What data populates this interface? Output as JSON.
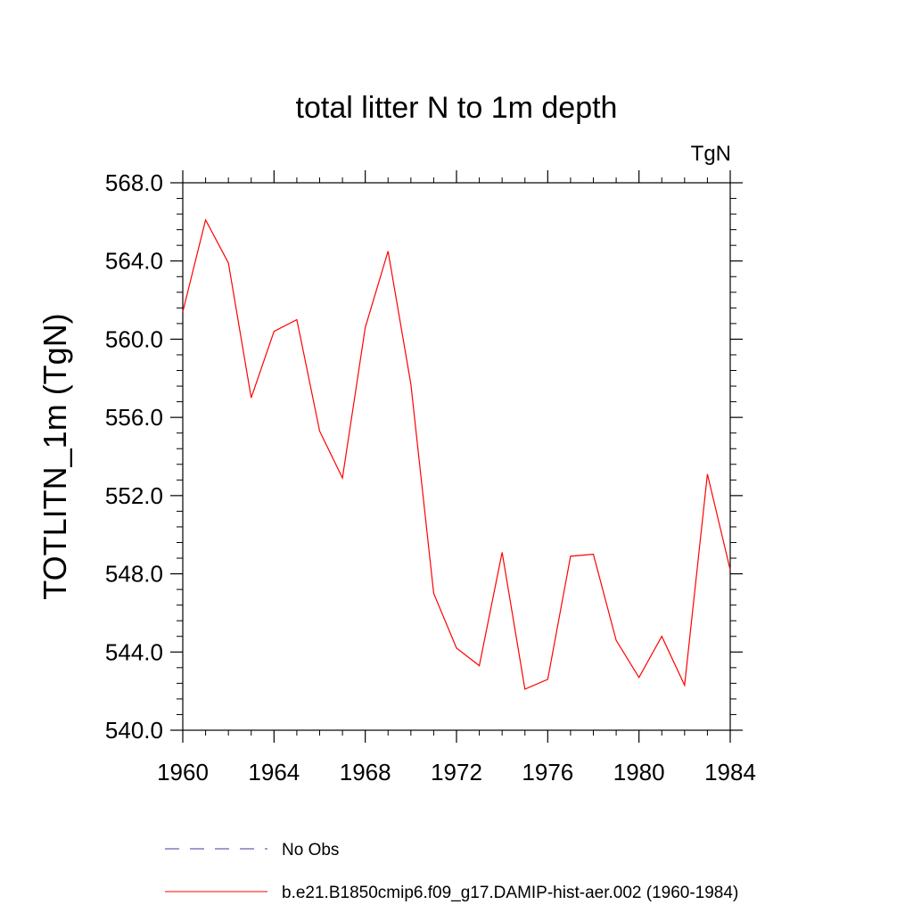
{
  "chart_data": {
    "type": "line",
    "title": "total litter N to 1m depth",
    "units": "TgN",
    "ylabel": "TOTLITN_1m  (TgN)",
    "xlabel": "",
    "xlim": [
      1960,
      1984
    ],
    "ylim": [
      540.0,
      568.0
    ],
    "xticks": [
      "1960",
      "1964",
      "1968",
      "1972",
      "1976",
      "1980",
      "1984"
    ],
    "yticks": [
      "540.0",
      "544.0",
      "548.0",
      "552.0",
      "556.0",
      "560.0",
      "564.0",
      "568.0"
    ],
    "grid": false,
    "legend_position": "bottom",
    "series": [
      {
        "name": "No Obs",
        "color": "#3b3ba0",
        "style": "dashed",
        "x": [],
        "y": []
      },
      {
        "name": "b.e21.B1850cmip6.f09_g17.DAMIP-hist-aer.002 (1960-1984)",
        "color": "#ff0000",
        "style": "solid",
        "x": [
          1960,
          1961,
          1962,
          1963,
          1964,
          1965,
          1966,
          1967,
          1968,
          1969,
          1970,
          1971,
          1972,
          1973,
          1974,
          1975,
          1976,
          1977,
          1978,
          1979,
          1980,
          1981,
          1982,
          1983,
          1984
        ],
        "y": [
          561.4,
          566.1,
          563.9,
          557.0,
          560.4,
          561.0,
          555.3,
          552.9,
          560.6,
          564.5,
          557.7,
          547.0,
          544.2,
          543.3,
          549.1,
          542.1,
          542.6,
          548.9,
          549.0,
          544.6,
          542.7,
          544.8,
          542.3,
          553.1,
          548.2
        ]
      }
    ]
  }
}
